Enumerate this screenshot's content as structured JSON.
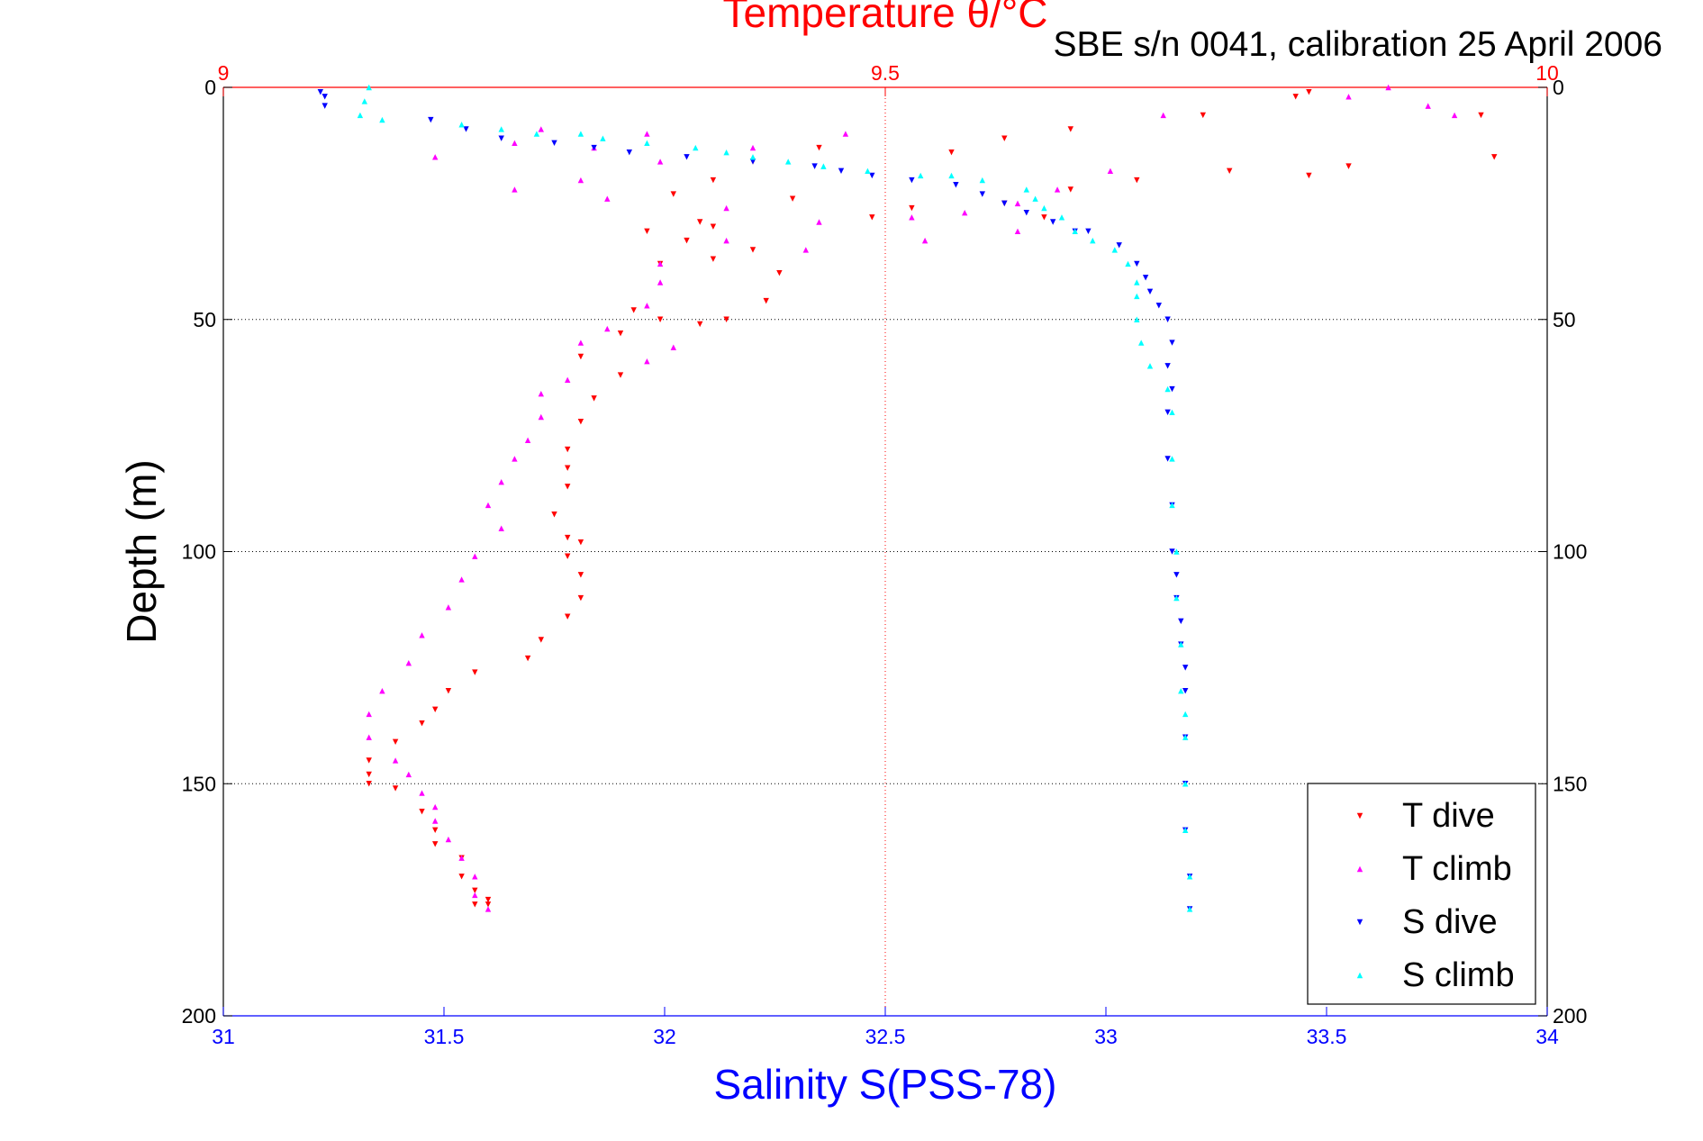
{
  "chart_data": {
    "type": "scatter",
    "title": "Temperature θ/°C",
    "subtitle": "SBE s/n 0041, calibration 25 April 2006",
    "ylabel": "Depth (m)",
    "xlabel_bottom": "Salinity S(PSS-78)",
    "xlabel_top": "Temperature θ/°C",
    "ylim": [
      200,
      0
    ],
    "xlim_bottom": [
      31,
      34
    ],
    "xlim_top": [
      9,
      10
    ],
    "y_reversed": true,
    "yticks": [
      0,
      50,
      100,
      150,
      200
    ],
    "xticks_bottom": [
      31,
      31.5,
      32,
      32.5,
      33,
      33.5,
      34
    ],
    "xticks_top": [
      9,
      9.5,
      10
    ],
    "ytick_labels": [
      "0",
      "50",
      "100",
      "150",
      "200"
    ],
    "xtick_labels_bottom": [
      "31",
      "31.5",
      "32",
      "32.5",
      "33",
      "33.5",
      "34"
    ],
    "xtick_labels_top": [
      "9",
      "9.5",
      "10"
    ],
    "grid": true,
    "legend_position": "bottom-right",
    "colors": {
      "temperature_axis": "#ff0000",
      "salinity_axis": "#0000ff",
      "t_dive": "#ff0000",
      "t_climb": "#ff00ff",
      "s_dive": "#0000ff",
      "s_climb": "#00ffff"
    },
    "series": [
      {
        "name": "T dive",
        "axis": "temperature",
        "color": "#ff0000",
        "marker": "triangle-down",
        "x": [
          9.82,
          9.81,
          9.95,
          9.96,
          9.74,
          9.64,
          9.59,
          9.55,
          9.45,
          9.4,
          9.37,
          9.34,
          9.32,
          9.37,
          9.59,
          9.64,
          9.69,
          9.76,
          9.82,
          9.85,
          9.62,
          9.52,
          9.49,
          9.43,
          9.36,
          9.35,
          9.37,
          9.33,
          9.4,
          9.42,
          9.41,
          9.38,
          9.36,
          9.31,
          9.33,
          9.3,
          9.27,
          9.3,
          9.28,
          9.27,
          9.26,
          9.26,
          9.26,
          9.25,
          9.26,
          9.26,
          9.27,
          9.27,
          9.27,
          9.26,
          9.24,
          9.23,
          9.19,
          9.17,
          9.16,
          9.15,
          9.13,
          9.11,
          9.11,
          9.11,
          9.13,
          9.15,
          9.16,
          9.16,
          9.18,
          9.18,
          9.19,
          9.2,
          9.19,
          9.2
        ],
        "y": [
          1,
          2,
          6,
          15,
          6,
          9,
          11,
          14,
          13,
          16,
          20,
          23,
          31,
          30,
          25,
          22,
          20,
          18,
          19,
          17,
          28,
          26,
          28,
          24,
          29,
          33,
          37,
          38,
          35,
          40,
          46,
          50,
          51,
          48,
          50,
          53,
          58,
          62,
          67,
          72,
          78,
          82,
          86,
          92,
          97,
          101,
          98,
          105,
          110,
          114,
          119,
          123,
          126,
          130,
          134,
          137,
          141,
          145,
          148,
          150,
          151,
          156,
          160,
          163,
          166,
          170,
          173,
          175,
          176,
          176
        ]
      },
      {
        "name": "T climb",
        "axis": "temperature",
        "color": "#ff00ff",
        "marker": "triangle-up",
        "x": [
          9.88,
          9.85,
          9.91,
          9.93,
          9.71,
          9.47,
          9.4,
          9.32,
          9.28,
          9.24,
          9.22,
          9.16,
          9.29,
          9.22,
          9.27,
          9.33,
          9.38,
          9.45,
          9.52,
          9.56,
          9.6,
          9.63,
          9.67,
          9.6,
          9.53,
          9.44,
          9.38,
          9.33,
          9.33,
          9.32,
          9.29,
          9.34,
          9.32,
          9.27,
          9.26,
          9.24,
          9.24,
          9.23,
          9.22,
          9.21,
          9.2,
          9.21,
          9.19,
          9.18,
          9.17,
          9.15,
          9.14,
          9.12,
          9.11,
          9.11,
          9.13,
          9.14,
          9.15,
          9.16,
          9.16,
          9.17,
          9.18,
          9.19,
          9.19,
          9.2
        ],
        "y": [
          0,
          2,
          4,
          6,
          6,
          10,
          13,
          10,
          13,
          9,
          12,
          15,
          24,
          22,
          20,
          16,
          26,
          29,
          28,
          27,
          25,
          22,
          18,
          31,
          33,
          35,
          33,
          38,
          42,
          47,
          52,
          56,
          59,
          55,
          63,
          66,
          71,
          76,
          80,
          85,
          90,
          95,
          101,
          106,
          112,
          118,
          124,
          130,
          135,
          140,
          145,
          148,
          152,
          155,
          158,
          162,
          166,
          170,
          174,
          177
        ]
      },
      {
        "name": "S dive",
        "axis": "salinity",
        "color": "#0000ff",
        "marker": "triangle-down",
        "x": [
          31.22,
          31.23,
          31.23,
          31.47,
          31.55,
          31.63,
          31.75,
          31.84,
          31.92,
          32.05,
          32.2,
          32.34,
          32.4,
          32.47,
          32.56,
          32.66,
          32.72,
          32.77,
          32.82,
          32.88,
          32.93,
          32.96,
          33.03,
          33.07,
          33.09,
          33.1,
          33.12,
          33.14,
          33.15,
          33.14,
          33.15,
          33.14,
          33.14,
          33.15,
          33.15,
          33.16,
          33.16,
          33.17,
          33.17,
          33.18,
          33.18,
          33.18,
          33.18,
          33.18,
          33.19,
          33.19
        ],
        "y": [
          1,
          2,
          4,
          7,
          9,
          11,
          12,
          13,
          14,
          15,
          16,
          17,
          18,
          19,
          20,
          21,
          23,
          25,
          27,
          29,
          31,
          31,
          34,
          38,
          41,
          44,
          47,
          50,
          55,
          60,
          65,
          70,
          80,
          90,
          100,
          105,
          110,
          115,
          120,
          125,
          130,
          140,
          150,
          160,
          170,
          177
        ]
      },
      {
        "name": "S climb",
        "axis": "salinity",
        "color": "#00ffff",
        "marker": "triangle-up",
        "x": [
          31.33,
          31.32,
          31.31,
          31.36,
          31.54,
          31.63,
          31.71,
          31.81,
          31.86,
          31.96,
          32.07,
          32.14,
          32.2,
          32.28,
          32.36,
          32.46,
          32.58,
          32.65,
          32.72,
          32.82,
          32.84,
          32.86,
          32.9,
          32.93,
          32.97,
          33.02,
          33.05,
          33.07,
          33.07,
          33.07,
          33.08,
          33.1,
          33.14,
          33.15,
          33.15,
          33.15,
          33.16,
          33.16,
          33.17,
          33.17,
          33.18,
          33.18,
          33.18,
          33.18,
          33.19,
          33.19
        ],
        "y": [
          0,
          3,
          6,
          7,
          8,
          9,
          10,
          10,
          11,
          12,
          13,
          14,
          15,
          16,
          17,
          18,
          19,
          19,
          20,
          22,
          24,
          26,
          28,
          31,
          33,
          35,
          38,
          42,
          45,
          50,
          55,
          60,
          65,
          70,
          80,
          90,
          100,
          110,
          120,
          130,
          135,
          140,
          150,
          160,
          170,
          177
        ]
      }
    ]
  }
}
